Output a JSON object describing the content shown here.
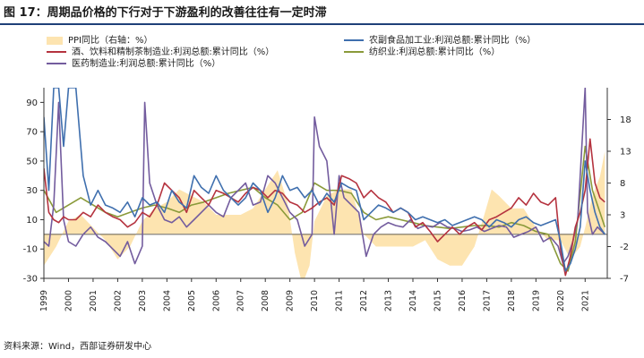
{
  "figure": {
    "title": "图 17：周期品价格的下行对于下游盈利的改善往往有一定时滞",
    "source": "资料来源：Wind，西部证券研发中心"
  },
  "chart_data": {
    "type": "line",
    "legend": [
      {
        "key": "ppi",
        "label": "PPI同比（右轴：%）",
        "color": "#fde4b0",
        "kind": "area"
      },
      {
        "key": "food",
        "label": "农副食品加工业:利润总额:累计同比（%）",
        "color": "#3f6fae",
        "kind": "line"
      },
      {
        "key": "drink",
        "label": "酒、饮料和精制茶制造业:利润总额:累计同比（%）",
        "color": "#b5333f",
        "kind": "line"
      },
      {
        "key": "textile",
        "label": "纺织业:利润总额:累计同比（%）",
        "color": "#8a9a3a",
        "kind": "line"
      },
      {
        "key": "pharma",
        "label": "医药制造业:利润总额:累计同比（%）",
        "color": "#735c9e",
        "kind": "line"
      }
    ],
    "left_axis": {
      "ylim": [
        -30,
        100
      ],
      "ticks": [
        "90",
        "70",
        "50",
        "30",
        "10",
        "-10",
        "-30"
      ]
    },
    "right_axis": {
      "ylim": [
        -7,
        23
      ],
      "ticks": [
        "18",
        "13",
        "8",
        "3",
        "-2",
        "-7"
      ]
    },
    "x_axis": {
      "xlim": [
        1999,
        2021.9
      ],
      "ticks": [
        "1999",
        "2000",
        "2001",
        "2002",
        "2003",
        "2004",
        "2005",
        "2006",
        "2007",
        "2008",
        "2009",
        "2010",
        "2011",
        "2012",
        "2013",
        "2014",
        "2015",
        "2016",
        "2017",
        "2018",
        "2019",
        "2020",
        "2021"
      ]
    },
    "series": {
      "ppi": {
        "x": [
          1999.0,
          1999.5,
          2000.0,
          2000.5,
          2001.0,
          2001.5,
          2002.0,
          2002.5,
          2003.0,
          2003.5,
          2004.0,
          2004.5,
          2005.0,
          2005.5,
          2006.0,
          2006.5,
          2007.0,
          2007.5,
          2008.0,
          2008.5,
          2008.9,
          2009.2,
          2009.5,
          2009.8,
          2010.0,
          2010.5,
          2011.0,
          2011.5,
          2012.0,
          2012.5,
          2013.0,
          2013.5,
          2014.0,
          2014.5,
          2015.0,
          2015.5,
          2016.0,
          2016.5,
          2016.9,
          2017.2,
          2017.5,
          2018.0,
          2018.5,
          2019.0,
          2019.5,
          2020.0,
          2020.4,
          2020.8,
          2021.0,
          2021.3,
          2021.6,
          2021.8
        ],
        "y": [
          -5,
          -2,
          2,
          3,
          1,
          -1,
          -4,
          -2,
          2,
          4,
          5,
          7,
          6,
          5,
          3,
          3,
          3,
          4,
          7,
          10,
          5,
          -3,
          -8,
          -5,
          2,
          6,
          7,
          7,
          0,
          -2,
          -2,
          -2,
          -2,
          -1,
          -4,
          -5,
          -5,
          -2,
          3,
          7,
          6,
          4,
          4,
          1,
          -1,
          -1,
          -4,
          -2,
          1,
          6,
          9,
          13
        ]
      },
      "food": {
        "x": [
          1999.0,
          1999.2,
          1999.4,
          1999.6,
          1999.8,
          2000.0,
          2000.3,
          2000.6,
          2000.9,
          2001.2,
          2001.5,
          2001.8,
          2002.1,
          2002.4,
          2002.7,
          2003.0,
          2003.3,
          2003.6,
          2003.9,
          2004.2,
          2004.5,
          2004.8,
          2005.1,
          2005.4,
          2005.7,
          2006.0,
          2006.3,
          2006.6,
          2006.9,
          2007.2,
          2007.5,
          2007.8,
          2008.1,
          2008.4,
          2008.7,
          2009.0,
          2009.3,
          2009.6,
          2009.9,
          2010.2,
          2010.5,
          2010.8,
          2011.1,
          2011.4,
          2011.7,
          2012.0,
          2012.3,
          2012.6,
          2012.9,
          2013.2,
          2013.5,
          2013.8,
          2014.1,
          2014.4,
          2014.7,
          2015.0,
          2015.3,
          2015.6,
          2015.9,
          2016.2,
          2016.5,
          2016.8,
          2017.1,
          2017.4,
          2017.7,
          2018.0,
          2018.3,
          2018.6,
          2018.9,
          2019.2,
          2019.5,
          2019.8,
          2020.0,
          2020.2,
          2020.4,
          2020.6,
          2020.8,
          2021.0,
          2021.2,
          2021.4,
          2021.6,
          2021.8
        ],
        "y": [
          80,
          30,
          100,
          100,
          60,
          100,
          100,
          40,
          20,
          30,
          20,
          18,
          15,
          22,
          12,
          25,
          20,
          22,
          15,
          30,
          22,
          18,
          40,
          32,
          28,
          40,
          30,
          25,
          20,
          25,
          35,
          30,
          15,
          25,
          40,
          30,
          32,
          25,
          30,
          20,
          28,
          22,
          35,
          32,
          30,
          10,
          15,
          20,
          18,
          15,
          18,
          15,
          10,
          12,
          10,
          8,
          10,
          6,
          8,
          10,
          12,
          10,
          5,
          10,
          8,
          5,
          10,
          12,
          8,
          6,
          8,
          10,
          -5,
          -25,
          -20,
          -10,
          5,
          50,
          30,
          15,
          5,
          0
        ]
      },
      "drink": {
        "x": [
          1999.0,
          1999.2,
          1999.4,
          1999.6,
          1999.8,
          2000.0,
          2000.3,
          2000.6,
          2000.9,
          2001.2,
          2001.5,
          2001.8,
          2002.1,
          2002.4,
          2002.7,
          2003.0,
          2003.3,
          2003.6,
          2003.9,
          2004.2,
          2004.5,
          2004.8,
          2005.1,
          2005.4,
          2005.7,
          2006.0,
          2006.3,
          2006.6,
          2006.9,
          2007.2,
          2007.5,
          2007.8,
          2008.1,
          2008.4,
          2008.7,
          2009.0,
          2009.3,
          2009.6,
          2009.9,
          2010.2,
          2010.5,
          2010.8,
          2011.1,
          2011.4,
          2011.7,
          2012.0,
          2012.3,
          2012.6,
          2012.9,
          2013.2,
          2013.5,
          2013.8,
          2014.1,
          2014.4,
          2014.7,
          2015.0,
          2015.3,
          2015.6,
          2015.9,
          2016.2,
          2016.5,
          2016.8,
          2017.1,
          2017.4,
          2017.7,
          2018.0,
          2018.3,
          2018.6,
          2018.9,
          2019.2,
          2019.5,
          2019.8,
          2020.0,
          2020.2,
          2020.4,
          2020.6,
          2020.8,
          2021.0,
          2021.2,
          2021.4,
          2021.6,
          2021.8
        ],
        "y": [
          45,
          15,
          10,
          8,
          12,
          10,
          10,
          15,
          12,
          20,
          15,
          12,
          10,
          5,
          8,
          15,
          12,
          20,
          35,
          30,
          25,
          15,
          30,
          25,
          20,
          30,
          28,
          25,
          22,
          28,
          32,
          30,
          25,
          30,
          28,
          22,
          20,
          15,
          18,
          22,
          25,
          20,
          40,
          38,
          35,
          25,
          30,
          25,
          22,
          15,
          18,
          15,
          5,
          8,
          2,
          -5,
          0,
          5,
          0,
          5,
          8,
          3,
          10,
          12,
          15,
          18,
          25,
          20,
          28,
          22,
          20,
          25,
          -10,
          -28,
          -15,
          5,
          15,
          30,
          65,
          35,
          25,
          22
        ]
      },
      "textile": {
        "x": [
          1999.0,
          1999.5,
          2000.0,
          2000.5,
          2001.0,
          2001.5,
          2002.0,
          2002.5,
          2003.0,
          2003.5,
          2004.0,
          2004.5,
          2005.0,
          2005.5,
          2006.0,
          2006.5,
          2007.0,
          2007.5,
          2008.0,
          2008.5,
          2009.0,
          2009.5,
          2010.0,
          2010.5,
          2011.0,
          2011.5,
          2012.0,
          2012.5,
          2013.0,
          2013.5,
          2014.0,
          2014.5,
          2015.0,
          2015.5,
          2016.0,
          2016.5,
          2017.0,
          2017.5,
          2018.0,
          2018.5,
          2019.0,
          2019.5,
          2020.0,
          2020.3,
          2020.6,
          2021.0,
          2021.3,
          2021.6,
          2021.8
        ],
        "y": [
          30,
          15,
          20,
          25,
          20,
          15,
          12,
          15,
          18,
          20,
          18,
          15,
          20,
          22,
          25,
          28,
          30,
          32,
          25,
          20,
          10,
          15,
          35,
          30,
          30,
          28,
          15,
          10,
          12,
          10,
          8,
          6,
          5,
          4,
          5,
          6,
          6,
          5,
          8,
          6,
          2,
          0,
          -20,
          -25,
          -5,
          60,
          30,
          15,
          5
        ]
      },
      "pharma": {
        "x": [
          1999.0,
          1999.2,
          1999.4,
          1999.6,
          1999.8,
          2000.0,
          2000.3,
          2000.6,
          2000.9,
          2001.2,
          2001.5,
          2001.8,
          2002.1,
          2002.4,
          2002.7,
          2003.0,
          2003.1,
          2003.3,
          2003.6,
          2003.9,
          2004.2,
          2004.5,
          2004.8,
          2005.1,
          2005.4,
          2005.7,
          2006.0,
          2006.3,
          2006.6,
          2006.9,
          2007.2,
          2007.5,
          2007.8,
          2008.1,
          2008.4,
          2008.7,
          2009.0,
          2009.3,
          2009.6,
          2009.9,
          2010.0,
          2010.2,
          2010.5,
          2010.8,
          2011.0,
          2011.2,
          2011.5,
          2011.8,
          2012.1,
          2012.4,
          2012.7,
          2013.0,
          2013.3,
          2013.6,
          2013.9,
          2014.2,
          2014.5,
          2014.8,
          2015.1,
          2015.4,
          2015.7,
          2016.0,
          2016.3,
          2016.6,
          2016.9,
          2017.2,
          2017.5,
          2017.8,
          2018.1,
          2018.4,
          2018.7,
          2019.0,
          2019.3,
          2019.6,
          2019.9,
          2020.1,
          2020.3,
          2020.5,
          2020.7,
          2021.0,
          2021.1,
          2021.3,
          2021.5,
          2021.8
        ],
        "y": [
          -5,
          -8,
          20,
          90,
          10,
          -5,
          -8,
          0,
          5,
          -2,
          -5,
          -10,
          -15,
          -5,
          -20,
          -8,
          90,
          35,
          20,
          10,
          8,
          12,
          5,
          10,
          15,
          20,
          15,
          12,
          25,
          30,
          35,
          20,
          22,
          40,
          35,
          25,
          15,
          10,
          -8,
          0,
          80,
          60,
          50,
          0,
          40,
          25,
          20,
          15,
          -15,
          0,
          5,
          8,
          6,
          5,
          10,
          4,
          6,
          5,
          8,
          5,
          4,
          2,
          3,
          5,
          2,
          4,
          6,
          5,
          -2,
          0,
          2,
          5,
          -5,
          -2,
          -8,
          -20,
          -15,
          -5,
          10,
          100,
          15,
          0,
          5,
          0
        ]
      }
    }
  }
}
